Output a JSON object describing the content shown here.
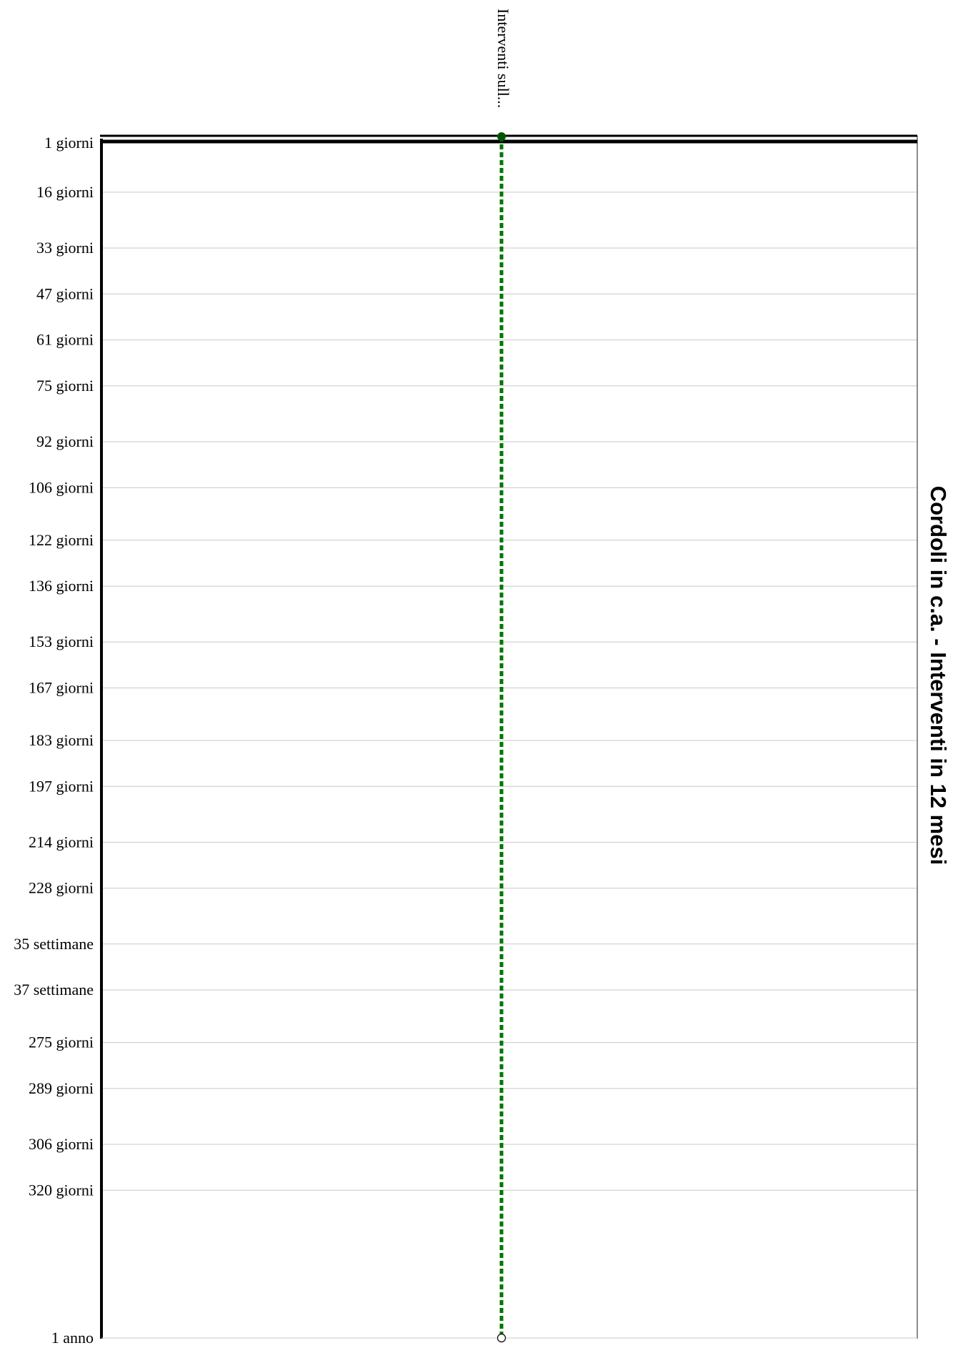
{
  "chart_data": {
    "type": "gantt",
    "title": "Cordoli in c.a. - Interventi in 12 mesi",
    "y_axis": {
      "unit": "days",
      "range": [
        1,
        365
      ],
      "ticks": [
        {
          "value": 1,
          "label": "1 giorni"
        },
        {
          "value": 16,
          "label": "16 giorni"
        },
        {
          "value": 33,
          "label": "33 giorni"
        },
        {
          "value": 47,
          "label": "47 giorni"
        },
        {
          "value": 61,
          "label": "61 giorni"
        },
        {
          "value": 75,
          "label": "75 giorni"
        },
        {
          "value": 92,
          "label": "92 giorni"
        },
        {
          "value": 106,
          "label": "106 giorni"
        },
        {
          "value": 122,
          "label": "122 giorni"
        },
        {
          "value": 136,
          "label": "136 giorni"
        },
        {
          "value": 153,
          "label": "153 giorni"
        },
        {
          "value": 167,
          "label": "167 giorni"
        },
        {
          "value": 183,
          "label": "183 giorni"
        },
        {
          "value": 197,
          "label": "197 giorni"
        },
        {
          "value": 214,
          "label": "214 giorni"
        },
        {
          "value": 228,
          "label": "228 giorni"
        },
        {
          "value": 245,
          "label": "35 settimane"
        },
        {
          "value": 259,
          "label": "37 settimane"
        },
        {
          "value": 275,
          "label": "275 giorni"
        },
        {
          "value": 289,
          "label": "289 giorni"
        },
        {
          "value": 306,
          "label": "306 giorni"
        },
        {
          "value": 320,
          "label": "320 giorni"
        },
        {
          "value": 365,
          "label": "1 anno"
        }
      ]
    },
    "tasks": [
      {
        "label": "Interventi sull...",
        "start": 1,
        "end": 365,
        "color": "#007700",
        "line_style": "dotted"
      }
    ],
    "grid": true
  }
}
